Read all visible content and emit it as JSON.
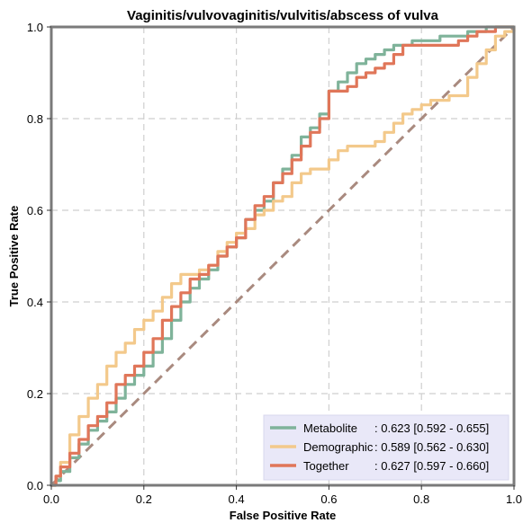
{
  "chart_data": {
    "type": "line",
    "title": "Vaginitis/vulvovaginitis/vulvitis/abscess of vulva",
    "xlabel": "False Positive Rate",
    "ylabel": "True Positive Rate",
    "xlim": [
      0,
      1
    ],
    "ylim": [
      0,
      1
    ],
    "xticks": [
      "0.0",
      "0.2",
      "0.4",
      "0.6",
      "0.8",
      "1.0"
    ],
    "yticks": [
      "0.0",
      "0.2",
      "0.4",
      "0.6",
      "0.8",
      "1.0"
    ],
    "grid": true,
    "legend_position": "lower-right",
    "reference_line": {
      "x": [
        0,
        1
      ],
      "y": [
        0,
        1
      ],
      "color": "#a98a7f",
      "style": "dashed"
    },
    "series": [
      {
        "name": "Metabolite",
        "legend_name": "Metabolite",
        "legend_value": ": 0.623 [0.592 - 0.655]",
        "color": "#7fb39a",
        "x": [
          0,
          0.01,
          0.02,
          0.04,
          0.06,
          0.08,
          0.1,
          0.12,
          0.14,
          0.16,
          0.18,
          0.2,
          0.22,
          0.24,
          0.26,
          0.28,
          0.3,
          0.32,
          0.34,
          0.36,
          0.38,
          0.4,
          0.42,
          0.44,
          0.46,
          0.48,
          0.5,
          0.52,
          0.54,
          0.56,
          0.58,
          0.6,
          0.62,
          0.64,
          0.66,
          0.68,
          0.7,
          0.72,
          0.74,
          0.76,
          0.78,
          0.8,
          0.82,
          0.84,
          0.86,
          0.88,
          0.9,
          0.92,
          0.94,
          0.96,
          0.98,
          1.0
        ],
        "y": [
          0,
          0.01,
          0.03,
          0.06,
          0.09,
          0.12,
          0.14,
          0.16,
          0.19,
          0.22,
          0.24,
          0.26,
          0.29,
          0.32,
          0.36,
          0.4,
          0.43,
          0.45,
          0.47,
          0.5,
          0.52,
          0.54,
          0.58,
          0.6,
          0.62,
          0.66,
          0.69,
          0.72,
          0.76,
          0.78,
          0.81,
          0.86,
          0.88,
          0.9,
          0.92,
          0.93,
          0.94,
          0.95,
          0.96,
          0.96,
          0.97,
          0.97,
          0.97,
          0.98,
          0.98,
          0.98,
          0.99,
          0.99,
          1.0,
          1.0,
          1.0,
          1.0
        ]
      },
      {
        "name": "Demographic",
        "legend_name": "Demographic",
        "legend_value": ": 0.589 [0.562 - 0.630]",
        "color": "#f3c98b",
        "x": [
          0,
          0.01,
          0.02,
          0.04,
          0.06,
          0.08,
          0.1,
          0.12,
          0.14,
          0.16,
          0.18,
          0.2,
          0.22,
          0.24,
          0.26,
          0.28,
          0.3,
          0.32,
          0.34,
          0.36,
          0.38,
          0.4,
          0.42,
          0.44,
          0.46,
          0.48,
          0.5,
          0.52,
          0.54,
          0.56,
          0.58,
          0.6,
          0.62,
          0.64,
          0.66,
          0.68,
          0.7,
          0.72,
          0.74,
          0.76,
          0.78,
          0.8,
          0.82,
          0.84,
          0.86,
          0.88,
          0.9,
          0.92,
          0.94,
          0.96,
          0.98,
          1.0
        ],
        "y": [
          0,
          0.02,
          0.05,
          0.11,
          0.15,
          0.19,
          0.22,
          0.26,
          0.29,
          0.31,
          0.34,
          0.36,
          0.38,
          0.41,
          0.44,
          0.46,
          0.46,
          0.47,
          0.48,
          0.51,
          0.53,
          0.55,
          0.56,
          0.59,
          0.6,
          0.62,
          0.63,
          0.66,
          0.68,
          0.69,
          0.69,
          0.71,
          0.73,
          0.74,
          0.74,
          0.74,
          0.75,
          0.77,
          0.79,
          0.81,
          0.82,
          0.83,
          0.84,
          0.84,
          0.85,
          0.85,
          0.89,
          0.92,
          0.95,
          0.98,
          0.99,
          1.0
        ]
      },
      {
        "name": "Together",
        "legend_name": "Together",
        "legend_value": ": 0.627 [0.597 - 0.660]",
        "color": "#e07659",
        "x": [
          0,
          0.01,
          0.02,
          0.04,
          0.06,
          0.08,
          0.1,
          0.12,
          0.14,
          0.16,
          0.18,
          0.2,
          0.22,
          0.24,
          0.26,
          0.28,
          0.3,
          0.32,
          0.34,
          0.36,
          0.38,
          0.4,
          0.42,
          0.44,
          0.46,
          0.48,
          0.5,
          0.52,
          0.54,
          0.56,
          0.58,
          0.6,
          0.62,
          0.64,
          0.66,
          0.68,
          0.7,
          0.72,
          0.74,
          0.76,
          0.78,
          0.8,
          0.82,
          0.84,
          0.86,
          0.88,
          0.9,
          0.92,
          0.94,
          0.96,
          0.98,
          1.0
        ],
        "y": [
          0,
          0.02,
          0.04,
          0.07,
          0.1,
          0.13,
          0.15,
          0.18,
          0.22,
          0.24,
          0.26,
          0.29,
          0.32,
          0.36,
          0.39,
          0.42,
          0.45,
          0.46,
          0.48,
          0.5,
          0.52,
          0.54,
          0.58,
          0.61,
          0.63,
          0.66,
          0.68,
          0.71,
          0.74,
          0.77,
          0.8,
          0.86,
          0.86,
          0.87,
          0.89,
          0.9,
          0.91,
          0.92,
          0.94,
          0.96,
          0.96,
          0.96,
          0.96,
          0.96,
          0.96,
          0.97,
          0.98,
          0.99,
          0.99,
          1.0,
          1.0,
          1.0
        ]
      }
    ]
  }
}
